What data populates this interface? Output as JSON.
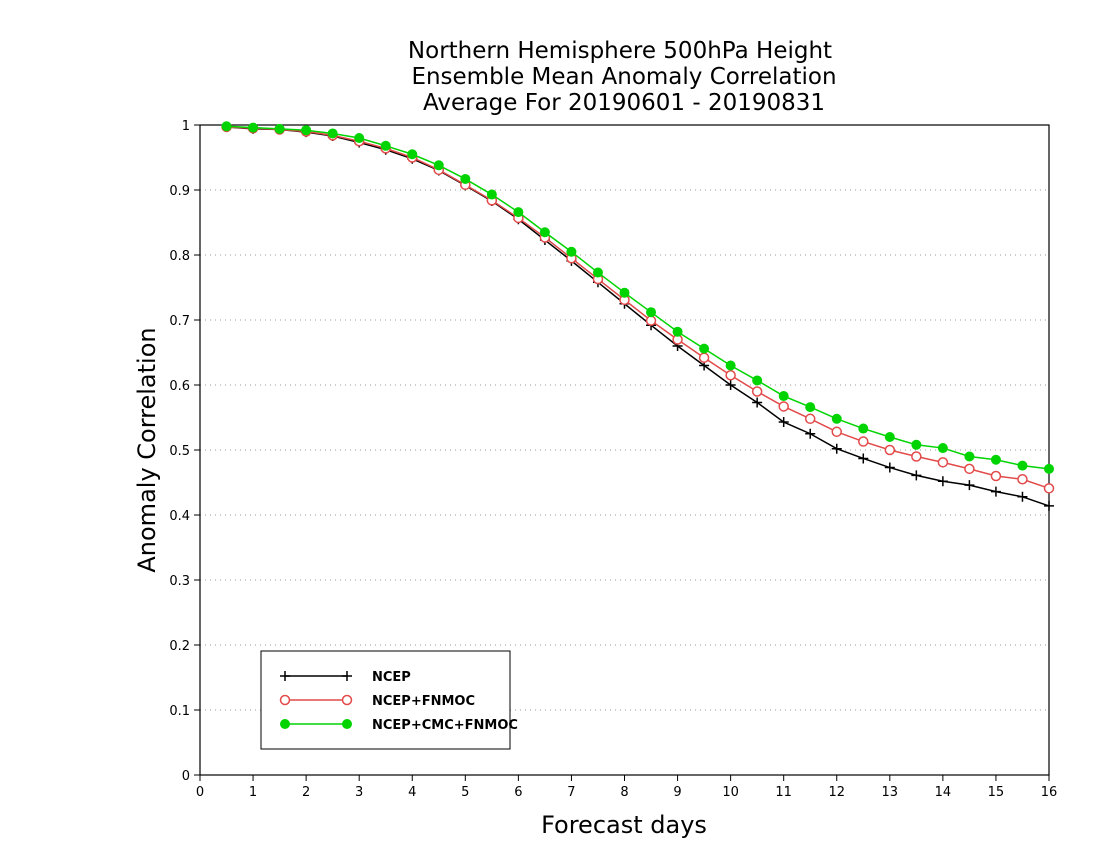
{
  "chart_data": {
    "type": "line",
    "title_lines": [
      "Northern Hemisphere 500hPa Height",
      "Ensemble Mean Anomaly Correlation",
      "Average For 20190601 - 20190831"
    ],
    "xlabel": "Forecast days",
    "ylabel": "Anomaly Correlation",
    "xlim": [
      0,
      16
    ],
    "ylim": [
      0,
      1
    ],
    "x_ticks": [
      0,
      1,
      2,
      3,
      4,
      5,
      6,
      7,
      8,
      9,
      10,
      11,
      12,
      13,
      14,
      15,
      16
    ],
    "y_ticks": [
      0,
      0.1,
      0.2,
      0.3,
      0.4,
      0.5,
      0.6,
      0.7,
      0.8,
      0.9,
      1
    ],
    "y_tick_labels": [
      "0",
      "0.1",
      "0.2",
      "0.3",
      "0.4",
      "0.5",
      "0.6",
      "0.7",
      "0.8",
      "0.9",
      "1"
    ],
    "grid": "horizontal dotted",
    "legend_position": "bottom-left",
    "x": [
      0.5,
      1,
      1.5,
      2,
      2.5,
      3,
      3.5,
      4,
      4.5,
      5,
      5.5,
      6,
      6.5,
      7,
      7.5,
      8,
      8.5,
      9,
      9.5,
      10,
      10.5,
      11,
      11.5,
      12,
      12.5,
      13,
      13.5,
      14,
      14.5,
      15,
      15.5,
      16
    ],
    "series": [
      {
        "name": "NCEP",
        "color": "#000000",
        "marker": "plus",
        "values": [
          0.997,
          0.994,
          0.993,
          0.989,
          0.983,
          0.973,
          0.962,
          0.948,
          0.93,
          0.907,
          0.883,
          0.855,
          0.823,
          0.791,
          0.758,
          0.725,
          0.692,
          0.66,
          0.63,
          0.6,
          0.573,
          0.543,
          0.525,
          0.502,
          0.487,
          0.473,
          0.461,
          0.452,
          0.446,
          0.436,
          0.428,
          0.414
        ]
      },
      {
        "name": "NCEP+FNMOC",
        "color": "#e34a4a",
        "marker": "open-circle",
        "values": [
          0.997,
          0.995,
          0.993,
          0.99,
          0.984,
          0.975,
          0.964,
          0.95,
          0.931,
          0.908,
          0.884,
          0.857,
          0.827,
          0.795,
          0.763,
          0.731,
          0.699,
          0.67,
          0.642,
          0.615,
          0.59,
          0.567,
          0.548,
          0.528,
          0.513,
          0.5,
          0.49,
          0.481,
          0.471,
          0.46,
          0.455,
          0.441
        ]
      },
      {
        "name": "NCEP+CMC+FNMOC",
        "color": "#00d400",
        "marker": "filled-circle",
        "values": [
          0.998,
          0.996,
          0.994,
          0.992,
          0.987,
          0.98,
          0.968,
          0.955,
          0.938,
          0.917,
          0.893,
          0.866,
          0.835,
          0.805,
          0.773,
          0.742,
          0.712,
          0.682,
          0.656,
          0.63,
          0.607,
          0.583,
          0.566,
          0.548,
          0.533,
          0.52,
          0.508,
          0.503,
          0.49,
          0.485,
          0.476,
          0.471
        ]
      }
    ]
  }
}
